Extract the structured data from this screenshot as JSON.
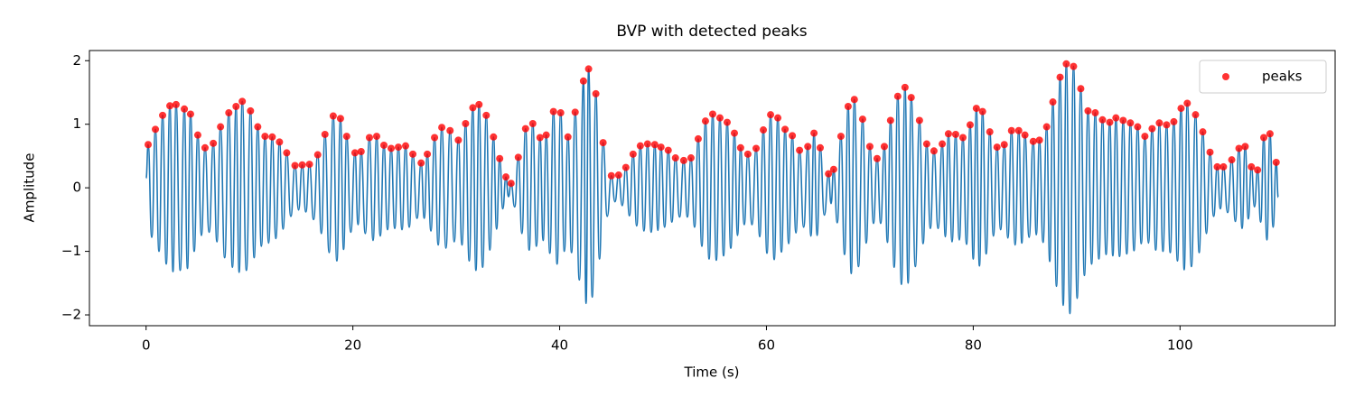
{
  "chart_data": {
    "type": "line",
    "title": "BVP with detected peaks",
    "xlabel": "Time (s)",
    "ylabel": "Amplitude",
    "xlim": [
      -5.48,
      115.0
    ],
    "ylim": [
      -2.17,
      2.16
    ],
    "xticks": [
      0,
      20,
      40,
      60,
      80,
      100
    ],
    "yticks": [
      {
        "value": -2,
        "label": "−2"
      },
      {
        "value": -1,
        "label": "−1"
      },
      0,
      1,
      2
    ],
    "legend": "upper right",
    "series": [
      {
        "color": "#1f77b4",
        "x": [
          0,
          0.2,
          0.55,
          0.9,
          1.25,
          1.6,
          1.95,
          2.3,
          2.6,
          2.9,
          3.3,
          3.7,
          4.0,
          4.3,
          4.65,
          5.0,
          5.35,
          5.7,
          6.1,
          6.5,
          6.85,
          7.2,
          7.6,
          8.0,
          8.35,
          8.7,
          9.0,
          9.3,
          9.7,
          10.1,
          10.45,
          10.8,
          11.15,
          11.5,
          11.85,
          12.2,
          12.55,
          12.9,
          13.25,
          13.6,
          14.0,
          14.4,
          14.75,
          15.1,
          15.45,
          15.8,
          16.2,
          16.6,
          16.95,
          17.3,
          17.7,
          18.1,
          18.45,
          18.8,
          19.1,
          19.4,
          19.8,
          20.2,
          20.5,
          20.8,
          21.2,
          21.6,
          21.95,
          22.3,
          22.65,
          23.0,
          23.35,
          23.7,
          24.05,
          24.4,
          24.75,
          25.1,
          25.45,
          25.8,
          26.2,
          26.6,
          26.9,
          27.2,
          27.55,
          27.9,
          28.25,
          28.6,
          29.0,
          29.4,
          29.8,
          30.2,
          30.55,
          30.9,
          31.25,
          31.6,
          31.9,
          32.2,
          32.55,
          32.9,
          33.25,
          33.6,
          33.9,
          34.2,
          34.5,
          34.8,
          35.05,
          35.3,
          35.65,
          36.0,
          36.35,
          36.7,
          37.05,
          37.4,
          37.75,
          38.1,
          38.4,
          38.7,
          39.05,
          39.4,
          39.75,
          40.1,
          40.45,
          40.8,
          41.15,
          41.5,
          41.9,
          42.3,
          42.55,
          42.8,
          43.15,
          43.5,
          43.85,
          44.2,
          44.6,
          45.0,
          45.35,
          45.7,
          46.05,
          46.4,
          46.75,
          47.1,
          47.45,
          47.8,
          48.15,
          48.5,
          48.85,
          49.2,
          49.5,
          49.8,
          50.15,
          50.5,
          50.85,
          51.2,
          51.6,
          52.0,
          52.35,
          52.7,
          53.05,
          53.4,
          53.75,
          54.1,
          54.45,
          54.8,
          55.15,
          55.5,
          55.85,
          56.2,
          56.55,
          56.9,
          57.2,
          57.5,
          57.85,
          58.2,
          58.6,
          59.0,
          59.35,
          59.7,
          60.05,
          60.4,
          60.75,
          61.1,
          61.45,
          61.8,
          62.15,
          62.5,
          62.85,
          63.2,
          63.6,
          64.0,
          64.3,
          64.6,
          64.9,
          65.2,
          65.6,
          66.0,
          66.25,
          66.5,
          66.85,
          67.2,
          67.55,
          67.9,
          68.2,
          68.5,
          68.9,
          69.3,
          69.65,
          70.0,
          70.35,
          70.7,
          71.05,
          71.4,
          71.7,
          72.0,
          72.35,
          72.7,
          73.05,
          73.4,
          73.7,
          74.0,
          74.4,
          74.8,
          75.15,
          75.5,
          75.85,
          76.2,
          76.6,
          77.0,
          77.3,
          77.6,
          77.95,
          78.3,
          78.65,
          79.0,
          79.35,
          79.7,
          80.0,
          80.3,
          80.6,
          80.9,
          81.25,
          81.6,
          81.95,
          82.3,
          82.65,
          83.0,
          83.35,
          83.7,
          84.05,
          84.4,
          84.7,
          85.0,
          85.4,
          85.8,
          86.1,
          86.4,
          86.75,
          87.1,
          87.4,
          87.7,
          88.05,
          88.4,
          88.7,
          89.0,
          89.35,
          89.7,
          90.05,
          90.4,
          90.75,
          91.1,
          91.45,
          91.8,
          92.15,
          92.5,
          92.85,
          93.2,
          93.5,
          93.8,
          94.15,
          94.5,
          94.85,
          95.2,
          95.55,
          95.9,
          96.25,
          96.6,
          96.95,
          97.3,
          97.65,
          98.0,
          98.35,
          98.7,
          99.05,
          99.4,
          99.75,
          100.1,
          100.4,
          100.7,
          101.1,
          101.5,
          101.85,
          102.2,
          102.55,
          102.9,
          103.25,
          103.6,
          103.9,
          104.2,
          104.6,
          105.0,
          105.35,
          105.7,
          106.0,
          106.3,
          106.6,
          106.9,
          107.2,
          107.5,
          107.8,
          108.1,
          108.4,
          108.7,
          109.0,
          109.3,
          109.5
        ],
        "y": [
          0.15,
          0.68,
          -0.78,
          0.92,
          -1.0,
          1.14,
          -1.2,
          1.29,
          -1.32,
          1.31,
          -1.3,
          1.24,
          -1.27,
          1.16,
          -1.0,
          0.83,
          -0.75,
          0.63,
          -0.7,
          0.7,
          -0.85,
          0.96,
          -1.1,
          1.18,
          -1.25,
          1.28,
          -1.33,
          1.36,
          -1.3,
          1.21,
          -1.1,
          0.96,
          -0.92,
          0.81,
          -0.87,
          0.8,
          -0.8,
          0.72,
          -0.65,
          0.55,
          -0.45,
          0.35,
          -0.35,
          0.36,
          -0.38,
          0.37,
          -0.5,
          0.52,
          -0.72,
          0.84,
          -1.02,
          1.13,
          -1.15,
          1.09,
          -0.97,
          0.81,
          -0.7,
          0.55,
          -0.58,
          0.57,
          -0.72,
          0.79,
          -0.83,
          0.81,
          -0.76,
          0.67,
          -0.66,
          0.62,
          -0.64,
          0.64,
          -0.66,
          0.66,
          -0.62,
          0.53,
          -0.48,
          0.39,
          -0.48,
          0.53,
          -0.68,
          0.79,
          -0.9,
          0.95,
          -0.95,
          0.9,
          -0.85,
          0.75,
          -0.9,
          1.01,
          -1.15,
          1.26,
          -1.3,
          1.31,
          -1.25,
          1.14,
          -0.98,
          0.8,
          -0.65,
          0.46,
          -0.33,
          0.17,
          -0.14,
          0.07,
          -0.3,
          0.48,
          -0.72,
          0.93,
          -0.98,
          1.01,
          -0.92,
          0.79,
          -0.83,
          0.83,
          -1.03,
          1.2,
          -1.2,
          1.18,
          -1.0,
          0.8,
          -1.02,
          1.19,
          -1.45,
          1.68,
          -1.82,
          1.87,
          -1.72,
          1.48,
          -1.12,
          0.71,
          -0.45,
          0.19,
          -0.22,
          0.2,
          -0.28,
          0.32,
          -0.44,
          0.53,
          -0.6,
          0.66,
          -0.68,
          0.69,
          -0.7,
          0.68,
          -0.67,
          0.64,
          -0.62,
          0.59,
          -0.54,
          0.47,
          -0.46,
          0.43,
          -0.46,
          0.47,
          -0.62,
          0.77,
          -0.92,
          1.05,
          -1.12,
          1.16,
          -1.14,
          1.1,
          -1.07,
          1.03,
          -0.95,
          0.86,
          -0.75,
          0.63,
          -0.58,
          0.53,
          -0.58,
          0.62,
          -0.77,
          0.91,
          -1.03,
          1.15,
          -1.13,
          1.1,
          -1.01,
          0.92,
          -0.88,
          0.82,
          -0.71,
          0.59,
          -0.62,
          0.65,
          -0.76,
          0.86,
          -0.75,
          0.63,
          -0.43,
          0.22,
          -0.25,
          0.29,
          -0.55,
          0.81,
          -1.05,
          1.28,
          -1.35,
          1.39,
          -1.24,
          1.08,
          -0.87,
          0.65,
          -0.56,
          0.46,
          -0.56,
          0.65,
          -0.86,
          1.06,
          -1.25,
          1.44,
          -1.52,
          1.58,
          -1.5,
          1.42,
          -1.24,
          1.06,
          -0.88,
          0.69,
          -0.64,
          0.58,
          -0.64,
          0.69,
          -0.77,
          0.85,
          -0.85,
          0.84,
          -0.82,
          0.79,
          -0.89,
          0.99,
          -1.12,
          1.25,
          -1.23,
          1.2,
          -1.04,
          0.88,
          -0.76,
          0.64,
          -0.66,
          0.68,
          -0.79,
          0.9,
          -0.9,
          0.9,
          -0.87,
          0.83,
          -0.78,
          0.73,
          -0.74,
          0.75,
          -0.86,
          0.96,
          -1.16,
          1.35,
          -1.55,
          1.74,
          -1.85,
          1.95,
          -1.98,
          1.91,
          -1.74,
          1.56,
          -1.38,
          1.21,
          -1.2,
          1.18,
          -1.12,
          1.07,
          -1.05,
          1.03,
          -1.07,
          1.1,
          -1.08,
          1.06,
          -1.04,
          1.02,
          -0.99,
          0.96,
          -0.88,
          0.81,
          -0.87,
          0.93,
          -0.98,
          1.02,
          -1.0,
          0.99,
          -1.02,
          1.04,
          -1.15,
          1.25,
          -1.29,
          1.33,
          -1.24,
          1.15,
          -1.02,
          0.88,
          -0.72,
          0.56,
          -0.45,
          0.33,
          -0.33,
          0.33,
          -0.39,
          0.44,
          -0.53,
          0.62,
          -0.64,
          0.65,
          -0.49,
          0.33,
          -0.3,
          0.28,
          -0.54,
          0.79,
          -0.82,
          0.85,
          -0.62,
          0.4,
          -0.15
        ]
      },
      {
        "name": "peaks",
        "type": "scatter",
        "color": "#ff0000",
        "x": [
          0.2,
          0.9,
          1.6,
          2.3,
          2.9,
          3.7,
          4.3,
          5.0,
          5.7,
          6.5,
          7.2,
          8.0,
          8.7,
          9.3,
          10.1,
          10.8,
          11.5,
          12.2,
          12.9,
          13.6,
          14.4,
          15.1,
          15.8,
          16.6,
          17.3,
          18.1,
          18.8,
          19.4,
          20.2,
          20.8,
          21.6,
          22.3,
          23.0,
          23.7,
          24.4,
          25.1,
          25.8,
          26.6,
          27.2,
          27.9,
          28.6,
          29.4,
          30.2,
          30.9,
          31.6,
          32.2,
          32.9,
          33.6,
          34.2,
          34.8,
          35.3,
          36.0,
          36.7,
          37.4,
          38.1,
          38.7,
          39.4,
          40.1,
          40.8,
          41.5,
          42.3,
          42.8,
          43.5,
          44.2,
          45.0,
          45.7,
          46.4,
          47.1,
          47.8,
          48.5,
          49.2,
          49.8,
          50.5,
          51.2,
          52.0,
          52.7,
          53.4,
          54.1,
          54.8,
          55.5,
          56.2,
          56.9,
          57.5,
          58.2,
          59.0,
          59.7,
          60.4,
          61.1,
          61.8,
          62.5,
          63.2,
          64.0,
          64.6,
          65.2,
          66.0,
          66.5,
          67.2,
          67.9,
          68.5,
          69.3,
          70.0,
          70.7,
          71.4,
          72.0,
          72.7,
          73.4,
          74.0,
          74.8,
          75.5,
          76.2,
          77.0,
          77.6,
          78.3,
          79.0,
          79.7,
          80.3,
          80.9,
          81.6,
          82.3,
          83.0,
          83.7,
          84.4,
          85.0,
          85.8,
          86.4,
          87.1,
          87.7,
          88.4,
          89.0,
          89.7,
          90.4,
          91.1,
          91.8,
          92.5,
          93.2,
          93.8,
          94.5,
          95.2,
          95.9,
          96.6,
          97.3,
          98.0,
          98.7,
          99.4,
          100.1,
          100.7,
          101.5,
          102.2,
          102.9,
          103.6,
          104.2,
          105.0,
          105.7,
          106.3,
          106.9,
          107.5,
          108.1,
          108.7,
          109.3
        ],
        "y": [
          0.68,
          0.92,
          1.14,
          1.29,
          1.31,
          1.24,
          1.16,
          0.83,
          0.63,
          0.7,
          0.96,
          1.18,
          1.28,
          1.36,
          1.21,
          0.96,
          0.81,
          0.8,
          0.72,
          0.55,
          0.35,
          0.36,
          0.37,
          0.52,
          0.84,
          1.13,
          1.09,
          0.81,
          0.55,
          0.57,
          0.79,
          0.81,
          0.67,
          0.62,
          0.64,
          0.66,
          0.53,
          0.39,
          0.53,
          0.79,
          0.95,
          0.9,
          0.75,
          1.01,
          1.26,
          1.31,
          1.14,
          0.8,
          0.46,
          0.17,
          0.07,
          0.48,
          0.93,
          1.01,
          0.79,
          0.83,
          1.2,
          1.18,
          0.8,
          1.19,
          1.68,
          1.87,
          1.48,
          0.71,
          0.19,
          0.2,
          0.32,
          0.53,
          0.66,
          0.69,
          0.68,
          0.64,
          0.59,
          0.47,
          0.43,
          0.47,
          0.77,
          1.05,
          1.16,
          1.1,
          1.03,
          0.86,
          0.63,
          0.53,
          0.62,
          0.91,
          1.15,
          1.1,
          0.92,
          0.82,
          0.59,
          0.65,
          0.86,
          0.63,
          0.22,
          0.29,
          0.81,
          1.28,
          1.39,
          1.08,
          0.65,
          0.46,
          0.65,
          1.06,
          1.44,
          1.58,
          1.42,
          1.06,
          0.69,
          0.58,
          0.69,
          0.85,
          0.84,
          0.79,
          0.99,
          1.25,
          1.2,
          0.88,
          0.64,
          0.68,
          0.9,
          0.9,
          0.83,
          0.73,
          0.75,
          0.96,
          1.35,
          1.74,
          1.95,
          1.91,
          1.56,
          1.21,
          1.18,
          1.07,
          1.03,
          1.1,
          1.06,
          1.02,
          0.96,
          0.81,
          0.93,
          1.02,
          0.99,
          1.04,
          1.25,
          1.33,
          1.15,
          0.88,
          0.56,
          0.33,
          0.33,
          0.44,
          0.62,
          0.65,
          0.33,
          0.28,
          0.79,
          0.85,
          0.4
        ]
      }
    ]
  }
}
